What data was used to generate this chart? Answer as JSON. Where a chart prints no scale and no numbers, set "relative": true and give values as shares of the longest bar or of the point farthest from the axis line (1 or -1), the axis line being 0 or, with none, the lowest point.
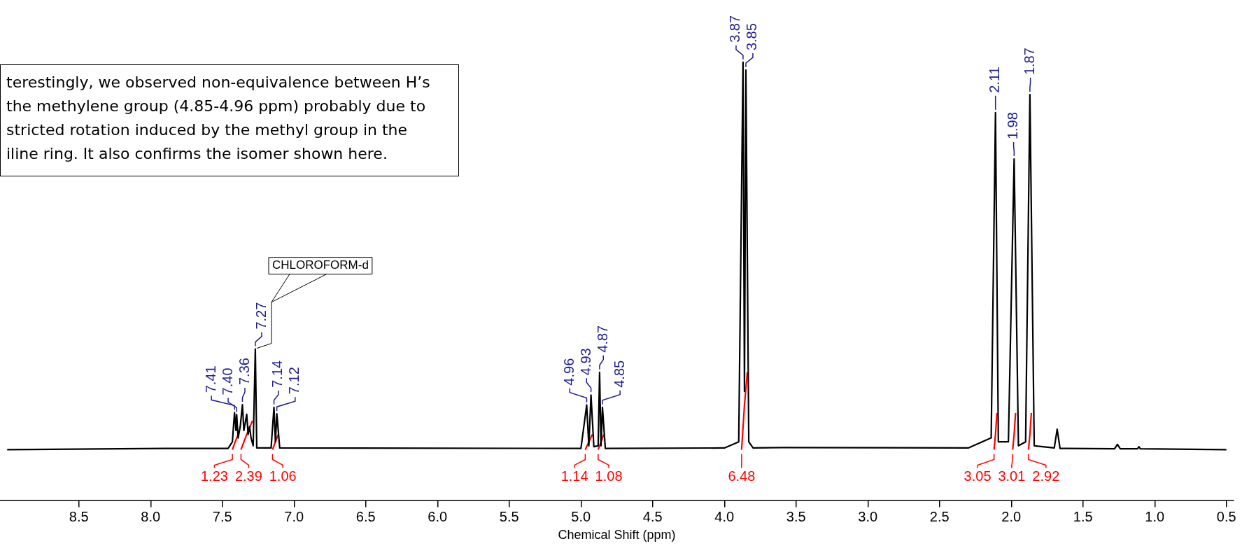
{
  "chart_data": {
    "type": "line",
    "relative": true,
    "xlabel": "Chemical Shift (ppm)",
    "xlim": [
      9.05,
      0.45
    ],
    "xticks": [
      {
        "value": 8.5,
        "label": "8.5"
      },
      {
        "value": 8.0,
        "label": "8.0"
      },
      {
        "value": 7.5,
        "label": "7.5"
      },
      {
        "value": 7.0,
        "label": "7.0"
      },
      {
        "value": 6.5,
        "label": "6.5"
      },
      {
        "value": 6.0,
        "label": "6.0"
      },
      {
        "value": 5.5,
        "label": "5.5"
      },
      {
        "value": 5.0,
        "label": "5.0"
      },
      {
        "value": 4.5,
        "label": "4.5"
      },
      {
        "value": 4.0,
        "label": "4.0"
      },
      {
        "value": 3.5,
        "label": "3.5"
      },
      {
        "value": 3.0,
        "label": "3.0"
      },
      {
        "value": 2.5,
        "label": "2.5"
      },
      {
        "value": 2.0,
        "label": "2.0"
      },
      {
        "value": 1.5,
        "label": "1.5"
      },
      {
        "value": 1.0,
        "label": "1.0"
      },
      {
        "value": 0.5,
        "label": "0.5"
      }
    ],
    "series": [
      {
        "color": "#000000",
        "x": [
          9.0,
          7.9,
          7.46,
          7.43,
          7.415,
          7.405,
          7.4,
          7.39,
          7.375,
          7.36,
          7.35,
          7.34,
          7.33,
          7.32,
          7.31,
          7.3,
          7.285,
          7.27,
          7.26,
          7.16,
          7.14,
          7.13,
          7.12,
          7.1,
          5.0,
          4.96,
          4.945,
          4.93,
          4.91,
          4.88,
          4.87,
          4.86,
          4.85,
          4.83,
          4.0,
          3.9,
          3.87,
          3.86,
          3.85,
          3.83,
          3.8,
          3.6,
          2.3,
          2.14,
          2.11,
          2.09,
          2.05,
          2.02,
          1.98,
          1.95,
          1.9,
          1.87,
          1.84,
          1.7,
          1.68,
          1.66,
          1.28,
          1.26,
          1.24,
          1.12,
          1.11,
          1.1,
          0.5
        ],
        "values": [
          0.115,
          0.118,
          0.118,
          0.133,
          0.2,
          0.159,
          0.195,
          0.142,
          0.168,
          0.218,
          0.159,
          0.177,
          0.196,
          0.15,
          0.168,
          0.142,
          0.124,
          0.345,
          0.119,
          0.119,
          0.212,
          0.133,
          0.197,
          0.119,
          0.118,
          0.217,
          0.124,
          0.24,
          0.122,
          0.124,
          0.292,
          0.124,
          0.212,
          0.118,
          0.119,
          0.133,
          1,
          0.248,
          0.982,
          0.133,
          0.119,
          0.12,
          0.119,
          0.142,
          0.885,
          0.133,
          0.133,
          0.133,
          0.779,
          0.124,
          0.133,
          0.926,
          0.124,
          0.119,
          0.162,
          0.118,
          0.117,
          0.127,
          0.117,
          0.117,
          0.122,
          0.117,
          0.115
        ]
      },
      {
        "color": "#ff0000",
        "x": [
          7.43,
          7.41,
          7.39,
          7.385,
          7.37,
          7.33,
          7.29,
          7.2,
          7.15,
          7.13,
          7.11,
          6.0,
          4.97,
          4.945,
          4.92,
          4.9,
          4.88,
          4.86,
          4.84,
          4.5,
          3.88,
          3.86,
          3.84,
          3.0,
          2.12,
          2.11,
          2.1,
          2.05,
          1.99,
          1.98,
          1.97,
          1.93,
          1.88,
          1.87,
          1.86
        ],
        "values": [
          0.115,
          0.133,
          0.15,
          null,
          0.115,
          0.15,
          0.181,
          null,
          0.115,
          0.133,
          0.15,
          null,
          0.115,
          0.133,
          0.15,
          null,
          0.115,
          0.133,
          0.15,
          null,
          0.115,
          0.217,
          0.292,
          null,
          0.115,
          0.15,
          0.199,
          null,
          0.115,
          0.15,
          0.199,
          null,
          0.115,
          0.15,
          0.199
        ]
      }
    ],
    "annotations": [
      "terestingly, we observed non-equivalence between H’s\nthe methylene group (4.85-4.96 ppm) probably due to\nstricted rotation induced by the methyl  group in the\niline ring. It also confirms the isomer shown here.",
      {
        "text": "7.41",
        "x": 7.415,
        "y": 0.2
      },
      {
        "text": "7.40",
        "x": 7.4,
        "y": 0.195
      },
      {
        "text": "7.36",
        "x": 7.36,
        "y": 0.218
      },
      {
        "text": "7.27",
        "x": 7.27,
        "y": 0.345
      },
      "CHLOROFORM-d",
      {
        "text": "7.14",
        "x": 7.14,
        "y": 0.212
      },
      {
        "text": "7.12",
        "x": 7.12,
        "y": 0.197
      },
      {
        "text": "4.96",
        "x": 4.96,
        "y": 0.217
      },
      {
        "text": "4.93",
        "x": 4.93,
        "y": 0.24
      },
      {
        "text": "4.87",
        "x": 4.87,
        "y": 0.292
      },
      {
        "text": "4.85",
        "x": 4.85,
        "y": 0.212
      },
      {
        "text": "3.87",
        "x": 3.87,
        "y": 1
      },
      {
        "text": "3.85",
        "x": 3.85,
        "y": 0.982
      },
      {
        "text": "2.11",
        "x": 2.11,
        "y": 0.885
      },
      {
        "text": "1.98",
        "x": 1.98,
        "y": 0.779
      },
      {
        "text": "1.87",
        "x": 1.87,
        "y": 0.926
      },
      {
        "text": "1.23",
        "x": 7.43,
        "y": 0.115
      },
      {
        "text": "2.39",
        "x": 7.37,
        "y": 0.115
      },
      {
        "text": "1.06",
        "x": 7.15,
        "y": 0.115
      },
      {
        "text": "1.14",
        "x": 4.97,
        "y": 0.115
      },
      {
        "text": "1.08",
        "x": 4.88,
        "y": 0.115
      },
      {
        "text": "6.48",
        "x": 3.88,
        "y": 0.115
      },
      {
        "text": "3.05",
        "x": 2.12,
        "y": 0.115
      },
      {
        "text": "3.01",
        "x": 1.99,
        "y": 0.115
      },
      {
        "text": "2.92",
        "x": 1.88,
        "y": 0.115
      }
    ]
  }
}
